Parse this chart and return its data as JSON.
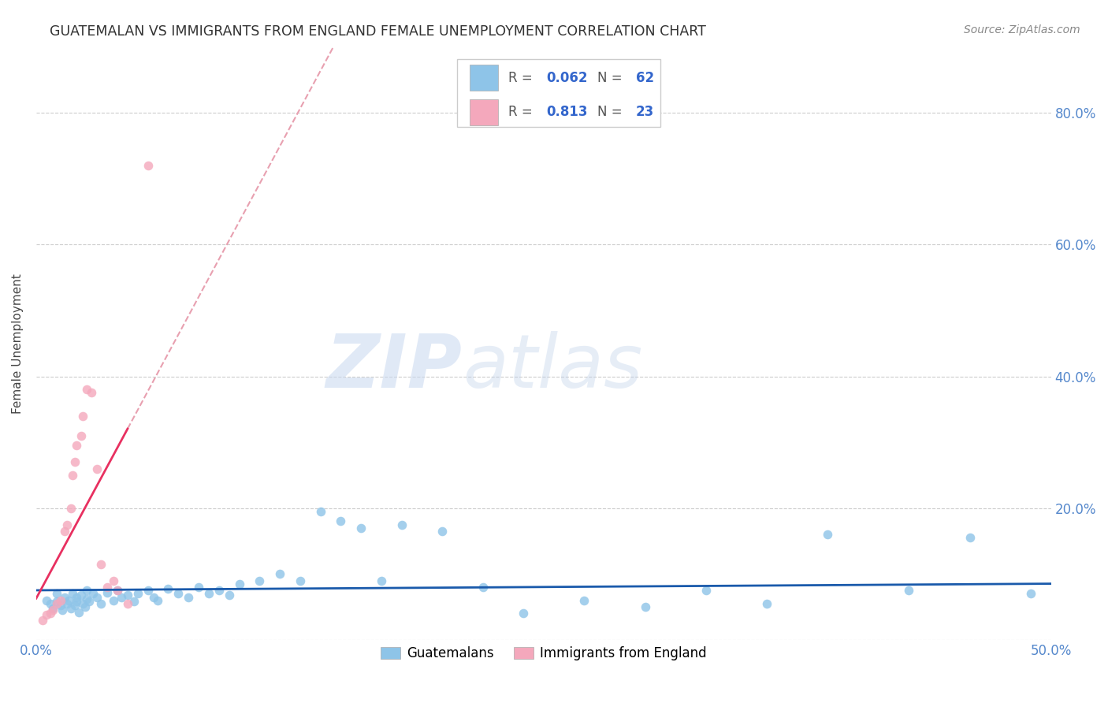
{
  "title": "GUATEMALAN VS IMMIGRANTS FROM ENGLAND FEMALE UNEMPLOYMENT CORRELATION CHART",
  "source": "Source: ZipAtlas.com",
  "ylabel": "Female Unemployment",
  "xlim": [
    0.0,
    0.5
  ],
  "ylim": [
    0.0,
    0.9
  ],
  "legend_blue_R": "0.062",
  "legend_blue_N": "62",
  "legend_pink_R": "0.813",
  "legend_pink_N": "23",
  "blue_color": "#8ec4e8",
  "pink_color": "#f4a8bc",
  "blue_line_color": "#1a5aab",
  "pink_line_color": "#e83060",
  "pink_dash_color": "#e8a0b0",
  "watermark_zip": "ZIP",
  "watermark_atlas": "atlas",
  "blue_scatter_x": [
    0.005,
    0.007,
    0.008,
    0.01,
    0.01,
    0.012,
    0.013,
    0.014,
    0.015,
    0.016,
    0.017,
    0.018,
    0.019,
    0.02,
    0.02,
    0.021,
    0.022,
    0.023,
    0.024,
    0.025,
    0.025,
    0.026,
    0.028,
    0.03,
    0.032,
    0.035,
    0.038,
    0.04,
    0.042,
    0.045,
    0.048,
    0.05,
    0.055,
    0.058,
    0.06,
    0.065,
    0.07,
    0.075,
    0.08,
    0.085,
    0.09,
    0.095,
    0.1,
    0.11,
    0.12,
    0.13,
    0.14,
    0.15,
    0.16,
    0.17,
    0.18,
    0.2,
    0.22,
    0.24,
    0.27,
    0.3,
    0.33,
    0.36,
    0.39,
    0.43,
    0.46,
    0.49
  ],
  "blue_scatter_y": [
    0.06,
    0.055,
    0.048,
    0.07,
    0.058,
    0.052,
    0.045,
    0.065,
    0.055,
    0.06,
    0.048,
    0.07,
    0.052,
    0.065,
    0.058,
    0.042,
    0.068,
    0.055,
    0.05,
    0.075,
    0.062,
    0.058,
    0.07,
    0.065,
    0.055,
    0.072,
    0.06,
    0.075,
    0.065,
    0.068,
    0.058,
    0.07,
    0.075,
    0.065,
    0.06,
    0.078,
    0.07,
    0.065,
    0.08,
    0.07,
    0.075,
    0.068,
    0.085,
    0.09,
    0.1,
    0.09,
    0.195,
    0.18,
    0.17,
    0.09,
    0.175,
    0.165,
    0.08,
    0.04,
    0.06,
    0.05,
    0.075,
    0.055,
    0.16,
    0.075,
    0.155,
    0.07
  ],
  "pink_scatter_x": [
    0.003,
    0.005,
    0.007,
    0.008,
    0.01,
    0.012,
    0.014,
    0.015,
    0.017,
    0.018,
    0.019,
    0.02,
    0.022,
    0.023,
    0.025,
    0.027,
    0.03,
    0.032,
    0.035,
    0.038,
    0.04,
    0.045,
    0.055
  ],
  "pink_scatter_y": [
    0.03,
    0.038,
    0.04,
    0.045,
    0.055,
    0.06,
    0.165,
    0.175,
    0.2,
    0.25,
    0.27,
    0.295,
    0.31,
    0.34,
    0.38,
    0.375,
    0.26,
    0.115,
    0.08,
    0.09,
    0.075,
    0.055,
    0.72
  ]
}
